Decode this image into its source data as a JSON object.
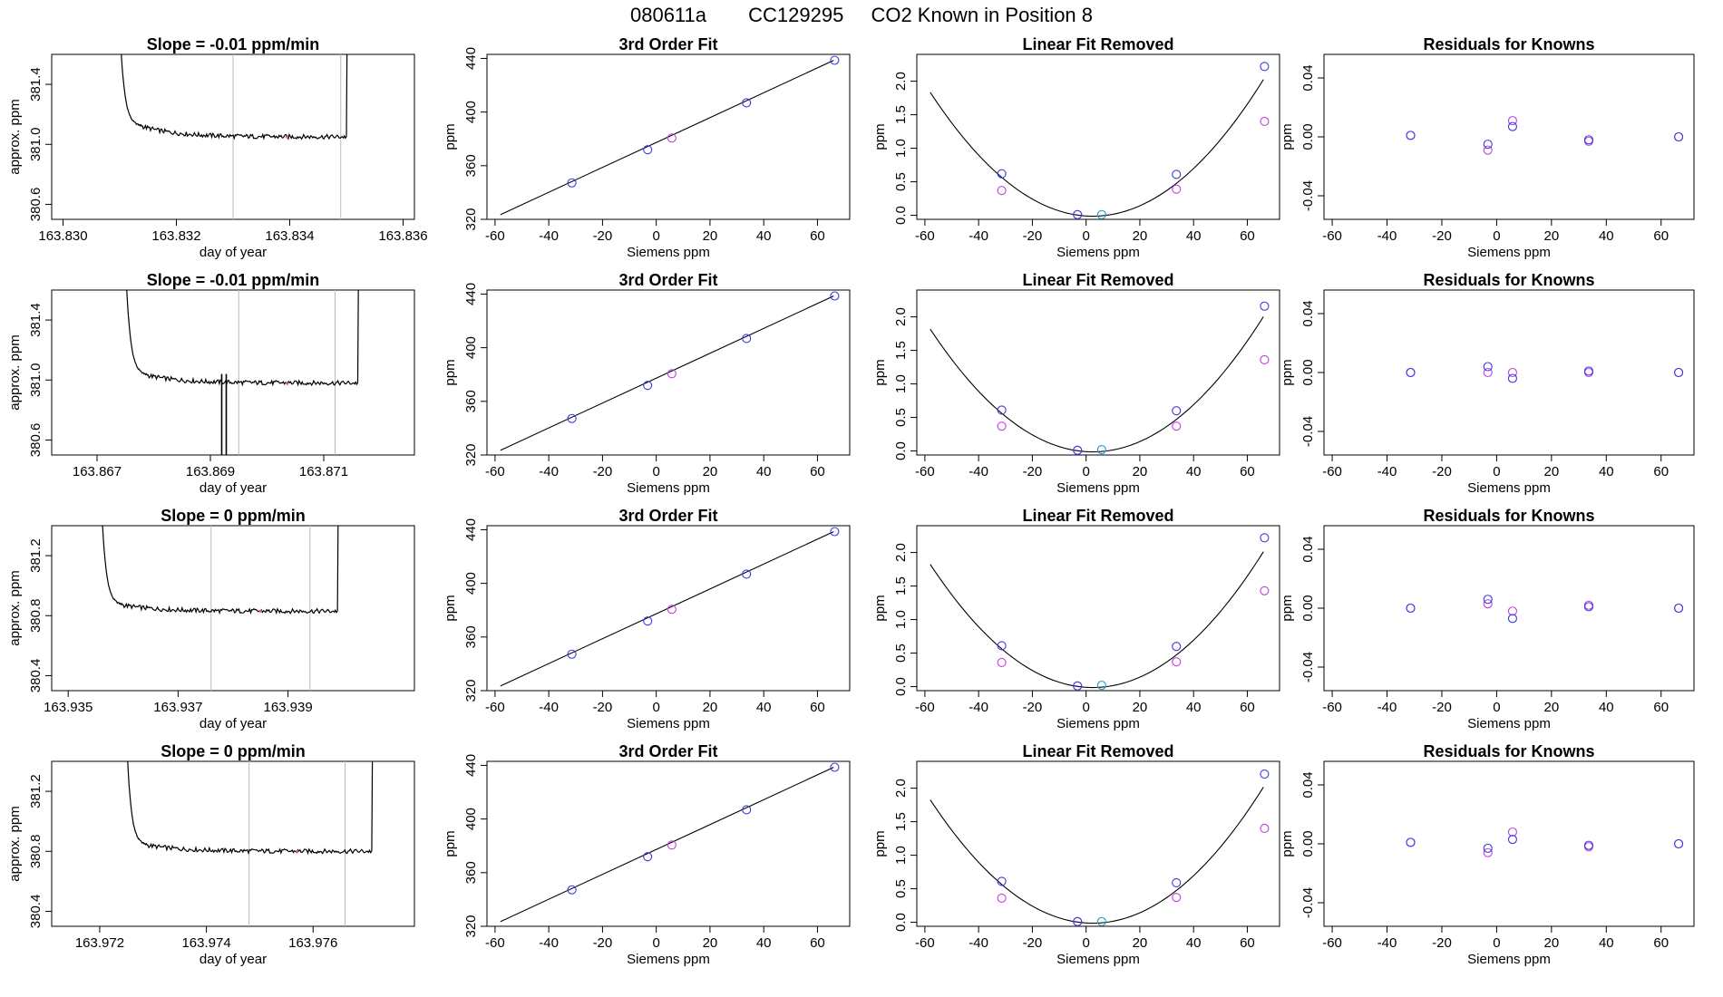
{
  "header": {
    "title_parts": [
      "080611a",
      "CC129295",
      "CO2 Known in Position  8"
    ]
  },
  "colors": {
    "known": "#3a3ae0",
    "fit": "#c040e0",
    "sample": "#2aa0c8",
    "line": "#000000",
    "vline": "#bbbbbb",
    "trace_mark": "#e06060"
  },
  "chart_data": [
    {
      "type": "line",
      "panel": "timeseries",
      "row": 0,
      "title": "Slope =  -0.01  ppm/min",
      "xlabel": "day of year",
      "ylabel": "approx. ppm",
      "xlim": [
        163.8298,
        163.8362
      ],
      "ylim": [
        380.5,
        381.6
      ],
      "xticks": [
        163.83,
        163.832,
        163.834,
        163.836
      ],
      "xtick_labels": [
        "163.830",
        "163.832",
        "163.834",
        "163.836"
      ],
      "yticks": [
        380.6,
        381.0,
        381.4
      ],
      "ytick_labels": [
        "380.6",
        "381.0",
        "381.4"
      ],
      "vlines": [
        163.833,
        163.8349
      ],
      "trace": {
        "x_start": 163.831,
        "x_plateau": 163.8314,
        "x_end": 163.835,
        "y_start": 381.6,
        "y_plateau": 381.12,
        "y_level": 381.05,
        "drop": null
      }
    },
    {
      "type": "line",
      "panel": "timeseries",
      "row": 1,
      "title": "Slope =  -0.01  ppm/min",
      "xlabel": "day of year",
      "ylabel": "approx. ppm",
      "xlim": [
        163.8662,
        163.8726
      ],
      "ylim": [
        380.5,
        381.6
      ],
      "xticks": [
        163.867,
        163.869,
        163.871
      ],
      "xtick_labels": [
        "163.867",
        "163.869",
        "163.871"
      ],
      "yticks": [
        380.6,
        381.0,
        381.4
      ],
      "ytick_labels": [
        "380.6",
        "381.0",
        "381.4"
      ],
      "vlines": [
        163.8695,
        163.8712
      ],
      "trace": {
        "x_start": 163.8675,
        "x_plateau": 163.8679,
        "x_end": 163.8716,
        "y_start": 381.6,
        "y_plateau": 381.03,
        "y_level": 380.98,
        "drop": {
          "x": 163.8692,
          "width": 8e-05,
          "y": 380.48
        }
      }
    },
    {
      "type": "line",
      "panel": "timeseries",
      "row": 2,
      "title": "Slope =  0  ppm/min",
      "xlabel": "day of year",
      "ylabel": "approx. ppm",
      "xlim": [
        163.9347,
        163.9413
      ],
      "ylim": [
        380.3,
        381.4
      ],
      "xticks": [
        163.935,
        163.937,
        163.939
      ],
      "xtick_labels": [
        "163.935",
        "163.937",
        "163.939"
      ],
      "yticks": [
        380.4,
        380.8,
        381.2
      ],
      "ytick_labels": [
        "380.4",
        "380.8",
        "381.2"
      ],
      "vlines": [
        163.9376,
        163.9394
      ],
      "trace": {
        "x_start": 163.9356,
        "x_plateau": 163.936,
        "x_end": 163.9399,
        "y_start": 381.4,
        "y_plateau": 380.87,
        "y_level": 380.83,
        "drop": null
      }
    },
    {
      "type": "line",
      "panel": "timeseries",
      "row": 3,
      "title": "Slope =  0  ppm/min",
      "xlabel": "day of year",
      "ylabel": "approx. ppm",
      "xlim": [
        163.9711,
        163.9779
      ],
      "ylim": [
        380.3,
        381.4
      ],
      "xticks": [
        163.972,
        163.974,
        163.976
      ],
      "xtick_labels": [
        "163.972",
        "163.974",
        "163.976"
      ],
      "yticks": [
        380.4,
        380.8,
        381.2
      ],
      "ytick_labels": [
        "380.4",
        "380.8",
        "381.2"
      ],
      "vlines": [
        163.9748,
        163.9766
      ],
      "trace": {
        "x_start": 163.9725,
        "x_plateau": 163.9729,
        "x_end": 163.9771,
        "y_start": 381.4,
        "y_plateau": 380.84,
        "y_level": 380.8,
        "drop": null
      }
    },
    {
      "type": "scatter",
      "panel": "fit",
      "row": 0,
      "title": "3rd Order Fit",
      "xlabel": "Siemens ppm",
      "ylabel": "ppm",
      "xlim": [
        -63,
        72
      ],
      "ylim": [
        320,
        443
      ],
      "xticks": [
        -60,
        -40,
        -20,
        0,
        20,
        40,
        60
      ],
      "xtick_labels": [
        "-60",
        "-40",
        "-20",
        "0",
        "20",
        "40",
        "60"
      ],
      "yticks": [
        320,
        360,
        400,
        440
      ],
      "ytick_labels": [
        "320",
        "360",
        "400",
        "440"
      ],
      "line": {
        "x": [
          -58,
          66
        ],
        "y": [
          323.5,
          438.5
        ]
      },
      "known_points": {
        "x": [
          -31.4,
          -3.2,
          33.6,
          66.4
        ],
        "y": [
          347.2,
          371.9,
          406.9,
          438.6
        ]
      },
      "sample_points": {
        "x": [
          5.8
        ],
        "y": [
          380.6
        ]
      }
    },
    {
      "type": "scatter",
      "panel": "fit",
      "row": 1,
      "title": "3rd Order Fit",
      "xlabel": "Siemens ppm",
      "ylabel": "ppm",
      "xlim": [
        -63,
        72
      ],
      "ylim": [
        320,
        443
      ],
      "xticks": [
        -60,
        -40,
        -20,
        0,
        20,
        40,
        60
      ],
      "xtick_labels": [
        "-60",
        "-40",
        "-20",
        "0",
        "20",
        "40",
        "60"
      ],
      "yticks": [
        320,
        360,
        400,
        440
      ],
      "ytick_labels": [
        "320",
        "360",
        "400",
        "440"
      ],
      "line": {
        "x": [
          -58,
          66
        ],
        "y": [
          323.5,
          438.5
        ]
      },
      "known_points": {
        "x": [
          -31.4,
          -3.2,
          33.6,
          66.4
        ],
        "y": [
          347.2,
          371.9,
          406.9,
          438.6
        ]
      },
      "sample_points": {
        "x": [
          5.8
        ],
        "y": [
          380.6
        ]
      }
    },
    {
      "type": "scatter",
      "panel": "fit",
      "row": 2,
      "title": "3rd Order Fit",
      "xlabel": "Siemens ppm",
      "ylabel": "ppm",
      "xlim": [
        -63,
        72
      ],
      "ylim": [
        320,
        443
      ],
      "xticks": [
        -60,
        -40,
        -20,
        0,
        20,
        40,
        60
      ],
      "xtick_labels": [
        "-60",
        "-40",
        "-20",
        "0",
        "20",
        "40",
        "60"
      ],
      "yticks": [
        320,
        360,
        400,
        440
      ],
      "ytick_labels": [
        "320",
        "360",
        "400",
        "440"
      ],
      "line": {
        "x": [
          -58,
          66
        ],
        "y": [
          323.5,
          438.5
        ]
      },
      "known_points": {
        "x": [
          -31.4,
          -3.2,
          33.6,
          66.4
        ],
        "y": [
          347.2,
          371.9,
          406.9,
          438.6
        ]
      },
      "sample_points": {
        "x": [
          5.8
        ],
        "y": [
          380.6
        ]
      }
    },
    {
      "type": "scatter",
      "panel": "fit",
      "row": 3,
      "title": "3rd Order Fit",
      "xlabel": "Siemens ppm",
      "ylabel": "ppm",
      "xlim": [
        -63,
        72
      ],
      "ylim": [
        320,
        443
      ],
      "xticks": [
        -60,
        -40,
        -20,
        0,
        20,
        40,
        60
      ],
      "xtick_labels": [
        "-60",
        "-40",
        "-20",
        "0",
        "20",
        "40",
        "60"
      ],
      "yticks": [
        320,
        360,
        400,
        440
      ],
      "ytick_labels": [
        "320",
        "360",
        "400",
        "440"
      ],
      "line": {
        "x": [
          -58,
          66
        ],
        "y": [
          323.5,
          438.5
        ]
      },
      "known_points": {
        "x": [
          -31.4,
          -3.2,
          33.6,
          66.4
        ],
        "y": [
          347.2,
          371.9,
          406.9,
          438.6
        ]
      },
      "sample_points": {
        "x": [
          5.8
        ],
        "y": [
          380.6
        ]
      }
    },
    {
      "type": "scatter",
      "panel": "linear_removed",
      "row": 0,
      "title": "Linear Fit Removed",
      "xlabel": "Siemens ppm",
      "ylabel": "ppm",
      "xlim": [
        -63,
        72
      ],
      "ylim": [
        -0.06,
        2.4
      ],
      "xticks": [
        -60,
        -40,
        -20,
        0,
        20,
        40,
        60
      ],
      "xtick_labels": [
        "-60",
        "-40",
        "-20",
        "0",
        "20",
        "40",
        "60"
      ],
      "yticks": [
        0.0,
        0.5,
        1.0,
        1.5,
        2.0
      ],
      "ytick_labels": [
        "0.0",
        "0.5",
        "1.0",
        "1.5",
        "2.0"
      ],
      "curve": {
        "x_range": [
          -58,
          66
        ],
        "a": 0.000505,
        "b": -0.0025,
        "c": -0.01
      },
      "known_points": {
        "x": [
          -31.4,
          -3.2,
          33.6,
          66.4
        ],
        "y": [
          0.62,
          0.01,
          0.61,
          2.22
        ]
      },
      "fit_points": {
        "x": [
          -31.4,
          -3.2,
          33.6,
          66.4
        ],
        "y": [
          0.37,
          0.01,
          0.39,
          1.4
        ]
      },
      "sample_points": {
        "x": [
          5.8
        ],
        "y": [
          0.01
        ]
      }
    },
    {
      "type": "scatter",
      "panel": "linear_removed",
      "row": 1,
      "title": "Linear Fit Removed",
      "xlabel": "Siemens ppm",
      "ylabel": "ppm",
      "xlim": [
        -63,
        72
      ],
      "ylim": [
        -0.06,
        2.4
      ],
      "xticks": [
        -60,
        -40,
        -20,
        0,
        20,
        40,
        60
      ],
      "xtick_labels": [
        "-60",
        "-40",
        "-20",
        "0",
        "20",
        "40",
        "60"
      ],
      "yticks": [
        0.0,
        0.5,
        1.0,
        1.5,
        2.0
      ],
      "ytick_labels": [
        "0.0",
        "0.5",
        "1.0",
        "1.5",
        "2.0"
      ],
      "curve": {
        "x_range": [
          -58,
          66
        ],
        "a": 0.0005,
        "b": -0.0025,
        "c": -0.01
      },
      "known_points": {
        "x": [
          -31.4,
          -3.2,
          33.6,
          66.4
        ],
        "y": [
          0.61,
          0.01,
          0.6,
          2.16
        ]
      },
      "fit_points": {
        "x": [
          -31.4,
          -3.2,
          33.6,
          66.4
        ],
        "y": [
          0.37,
          0.01,
          0.37,
          1.36
        ]
      },
      "sample_points": {
        "x": [
          5.8
        ],
        "y": [
          0.02
        ]
      }
    },
    {
      "type": "scatter",
      "panel": "linear_removed",
      "row": 2,
      "title": "Linear Fit Removed",
      "xlabel": "Siemens ppm",
      "ylabel": "ppm",
      "xlim": [
        -63,
        72
      ],
      "ylim": [
        -0.06,
        2.4
      ],
      "xticks": [
        -60,
        -40,
        -20,
        0,
        20,
        40,
        60
      ],
      "xtick_labels": [
        "-60",
        "-40",
        "-20",
        "0",
        "20",
        "40",
        "60"
      ],
      "yticks": [
        0.0,
        0.5,
        1.0,
        1.5,
        2.0
      ],
      "ytick_labels": [
        "0.0",
        "0.5",
        "1.0",
        "1.5",
        "2.0"
      ],
      "curve": {
        "x_range": [
          -58,
          66
        ],
        "a": 0.000502,
        "b": -0.0025,
        "c": -0.01
      },
      "known_points": {
        "x": [
          -31.4,
          -3.2,
          33.6,
          66.4
        ],
        "y": [
          0.61,
          0.01,
          0.6,
          2.22
        ]
      },
      "fit_points": {
        "x": [
          -31.4,
          -3.2,
          33.6,
          66.4
        ],
        "y": [
          0.36,
          0.01,
          0.37,
          1.43
        ]
      },
      "sample_points": {
        "x": [
          5.8
        ],
        "y": [
          0.02
        ]
      }
    },
    {
      "type": "scatter",
      "panel": "linear_removed",
      "row": 3,
      "title": "Linear Fit Removed",
      "xlabel": "Siemens ppm",
      "ylabel": "ppm",
      "xlim": [
        -63,
        72
      ],
      "ylim": [
        -0.06,
        2.4
      ],
      "xticks": [
        -60,
        -40,
        -20,
        0,
        20,
        40,
        60
      ],
      "xtick_labels": [
        "-60",
        "-40",
        "-20",
        "0",
        "20",
        "40",
        "60"
      ],
      "yticks": [
        0.0,
        0.5,
        1.0,
        1.5,
        2.0
      ],
      "ytick_labels": [
        "0.0",
        "0.5",
        "1.0",
        "1.5",
        "2.0"
      ],
      "curve": {
        "x_range": [
          -58,
          66
        ],
        "a": 0.000503,
        "b": -0.0025,
        "c": -0.01
      },
      "known_points": {
        "x": [
          -31.4,
          -3.2,
          33.6,
          66.4
        ],
        "y": [
          0.61,
          0.01,
          0.59,
          2.21
        ]
      },
      "fit_points": {
        "x": [
          -31.4,
          -3.2,
          33.6,
          66.4
        ],
        "y": [
          0.36,
          0.01,
          0.37,
          1.4
        ]
      },
      "sample_points": {
        "x": [
          5.8
        ],
        "y": [
          0.01
        ]
      }
    },
    {
      "type": "scatter",
      "panel": "residuals",
      "row": 0,
      "title": "Residuals for Knowns",
      "xlabel": "Siemens ppm",
      "ylabel": "ppm",
      "xlim": [
        -63,
        72
      ],
      "ylim": [
        -0.056,
        0.056
      ],
      "xticks": [
        -60,
        -40,
        -20,
        0,
        20,
        40,
        60
      ],
      "xtick_labels": [
        "-60",
        "-40",
        "-20",
        "0",
        "20",
        "40",
        "60"
      ],
      "yticks": [
        -0.04,
        0.0,
        0.04
      ],
      "ytick_labels": [
        "-0.04",
        "0.00",
        "0.04"
      ],
      "blue_points": {
        "x": [
          -31.4,
          -3.2,
          5.8,
          33.6,
          66.4
        ],
        "y": [
          0.001,
          -0.005,
          0.007,
          -0.002,
          0.0
        ]
      },
      "pink_points": {
        "x": [
          -31.4,
          -3.2,
          5.8,
          33.6,
          66.4
        ],
        "y": [
          0.001,
          -0.009,
          0.011,
          -0.003,
          0.0
        ]
      }
    },
    {
      "type": "scatter",
      "panel": "residuals",
      "row": 1,
      "title": "Residuals for Knowns",
      "xlabel": "Siemens ppm",
      "ylabel": "ppm",
      "xlim": [
        -63,
        72
      ],
      "ylim": [
        -0.056,
        0.056
      ],
      "xticks": [
        -60,
        -40,
        -20,
        0,
        20,
        40,
        60
      ],
      "xtick_labels": [
        "-60",
        "-40",
        "-20",
        "0",
        "20",
        "40",
        "60"
      ],
      "yticks": [
        -0.04,
        0.0,
        0.04
      ],
      "ytick_labels": [
        "-0.04",
        "0.00",
        "0.04"
      ],
      "blue_points": {
        "x": [
          -31.4,
          -3.2,
          5.8,
          33.6,
          66.4
        ],
        "y": [
          0.0,
          0.004,
          -0.004,
          0.001,
          0.0
        ]
      },
      "pink_points": {
        "x": [
          -31.4,
          -3.2,
          5.8,
          33.6,
          66.4
        ],
        "y": [
          0.0,
          0.0,
          0.0,
          0.0,
          0.0
        ]
      }
    },
    {
      "type": "scatter",
      "panel": "residuals",
      "row": 2,
      "title": "Residuals for Knowns",
      "xlabel": "Siemens ppm",
      "ylabel": "ppm",
      "xlim": [
        -63,
        72
      ],
      "ylim": [
        -0.056,
        0.056
      ],
      "xticks": [
        -60,
        -40,
        -20,
        0,
        20,
        40,
        60
      ],
      "xtick_labels": [
        "-60",
        "-40",
        "-20",
        "0",
        "20",
        "40",
        "60"
      ],
      "yticks": [
        -0.04,
        0.0,
        0.04
      ],
      "ytick_labels": [
        "-0.04",
        "0.00",
        "0.04"
      ],
      "blue_points": {
        "x": [
          -31.4,
          -3.2,
          5.8,
          33.6,
          66.4
        ],
        "y": [
          0.0,
          0.006,
          -0.007,
          0.001,
          0.0
        ]
      },
      "pink_points": {
        "x": [
          -31.4,
          -3.2,
          5.8,
          33.6,
          66.4
        ],
        "y": [
          0.0,
          0.003,
          -0.002,
          0.002,
          0.0
        ]
      }
    },
    {
      "type": "scatter",
      "panel": "residuals",
      "row": 3,
      "title": "Residuals for Knowns",
      "xlabel": "Siemens ppm",
      "ylabel": "ppm",
      "xlim": [
        -63,
        72
      ],
      "ylim": [
        -0.056,
        0.056
      ],
      "xticks": [
        -60,
        -40,
        -20,
        0,
        20,
        40,
        60
      ],
      "xtick_labels": [
        "-60",
        "-40",
        "-20",
        "0",
        "20",
        "40",
        "60"
      ],
      "yticks": [
        -0.04,
        0.0,
        0.04
      ],
      "ytick_labels": [
        "-0.04",
        "0.00",
        "0.04"
      ],
      "blue_points": {
        "x": [
          -31.4,
          -3.2,
          5.8,
          33.6,
          66.4
        ],
        "y": [
          0.001,
          -0.003,
          0.003,
          -0.001,
          0.0
        ]
      },
      "pink_points": {
        "x": [
          -31.4,
          -3.2,
          5.8,
          33.6,
          66.4
        ],
        "y": [
          0.001,
          -0.006,
          0.008,
          -0.002,
          0.0
        ]
      }
    }
  ]
}
